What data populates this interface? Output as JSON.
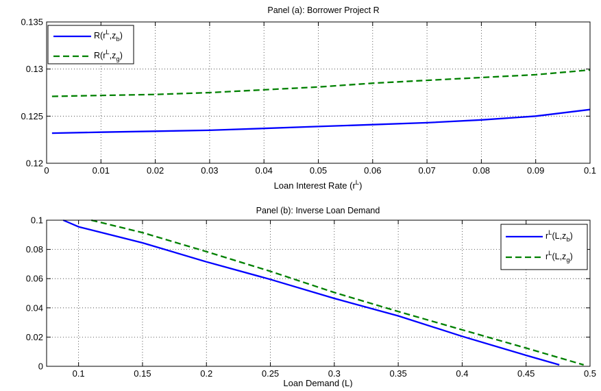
{
  "chart_data": [
    {
      "type": "line",
      "title": "Panel (a): Borrower Project R",
      "xlabel": "Loan Interest Rate (r^L)",
      "xlabel_parts": {
        "main": "Loan Interest Rate (r",
        "sup": "L",
        "close": ")"
      },
      "ylabel": "",
      "xlim": [
        0,
        0.1
      ],
      "ylim": [
        0.12,
        0.135
      ],
      "xticks": [
        "0",
        "0.01",
        "0.02",
        "0.03",
        "0.04",
        "0.05",
        "0.06",
        "0.07",
        "0.08",
        "0.09",
        "0.1"
      ],
      "yticks": [
        "0.12",
        "0.125",
        "0.13",
        "0.135"
      ],
      "grid": true,
      "legend_position": "top-left",
      "x": [
        0.001,
        0.01,
        0.02,
        0.03,
        0.04,
        0.05,
        0.06,
        0.07,
        0.08,
        0.09,
        0.1
      ],
      "series": [
        {
          "name": "R(r^L,z_b)",
          "legend": {
            "base": "R(r",
            "sup": "L",
            "mid": ",z",
            "sub": "b",
            "end": ")"
          },
          "style": "solid",
          "color": "#0000ff",
          "values": [
            0.1232,
            0.1233,
            0.1234,
            0.1235,
            0.1237,
            0.1239,
            0.1241,
            0.1243,
            0.1246,
            0.125,
            0.1257
          ]
        },
        {
          "name": "R(r^L,z_g)",
          "legend": {
            "base": "R(r",
            "sup": "L",
            "mid": ",z",
            "sub": "g",
            "end": ")"
          },
          "style": "dashed",
          "color": "#008000",
          "values": [
            0.1271,
            0.1272,
            0.1273,
            0.1275,
            0.1278,
            0.1281,
            0.1285,
            0.1288,
            0.1291,
            0.1294,
            0.1299
          ]
        }
      ]
    },
    {
      "type": "line",
      "title": "Panel (b): Inverse Loan Demand",
      "xlabel": "Loan Demand (L)",
      "ylabel": "",
      "xlim": [
        0.075,
        0.5
      ],
      "ylim": [
        0,
        0.1
      ],
      "xticks": [
        "0.1",
        "0.15",
        "0.2",
        "0.25",
        "0.3",
        "0.35",
        "0.4",
        "0.45",
        "0.5"
      ],
      "yticks": [
        "0",
        "0.02",
        "0.04",
        "0.06",
        "0.08",
        "0.1"
      ],
      "grid": true,
      "legend_position": "top-right",
      "series": [
        {
          "name": "r^L(L,z_b)",
          "legend": {
            "base": "r",
            "sup": "L",
            "mid": "(L,z",
            "sub": "b",
            "end": ")"
          },
          "style": "solid",
          "color": "#0000ff",
          "x": [
            0.088,
            0.1,
            0.15,
            0.2,
            0.25,
            0.3,
            0.35,
            0.4,
            0.45,
            0.476
          ],
          "values": [
            0.1,
            0.0955,
            0.0845,
            0.0715,
            0.0595,
            0.0465,
            0.0345,
            0.0205,
            0.0075,
            0.001
          ]
        },
        {
          "name": "r^L(L,z_g)",
          "legend": {
            "base": "r",
            "sup": "L",
            "mid": "(L,z",
            "sub": "g",
            "end": ")"
          },
          "style": "dashed",
          "color": "#008000",
          "x": [
            0.11,
            0.15,
            0.2,
            0.25,
            0.3,
            0.35,
            0.4,
            0.45,
            0.495
          ],
          "values": [
            0.1,
            0.0915,
            0.0785,
            0.065,
            0.0505,
            0.0375,
            0.025,
            0.0125,
            0.001
          ]
        }
      ]
    }
  ]
}
